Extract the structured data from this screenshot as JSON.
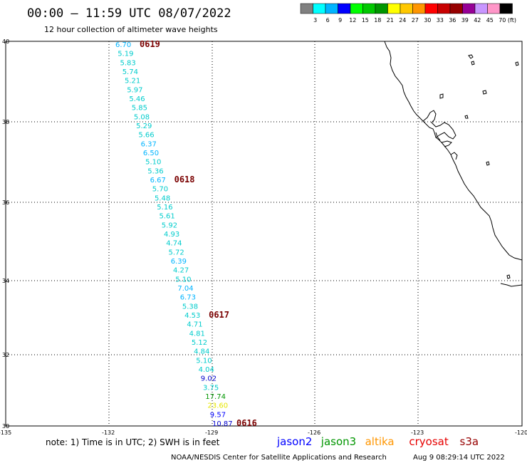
{
  "header": {
    "title": "00:00 – 11:59 UTC 08/07/2022",
    "subtitle": "12 hour collection of altimeter wave heights"
  },
  "color_scale": {
    "colors": [
      "#808080",
      "#00ffff",
      "#00b4ff",
      "#0000ff",
      "#00ff00",
      "#00c800",
      "#009600",
      "#ffff00",
      "#ffc800",
      "#ff9600",
      "#ff0000",
      "#c80000",
      "#960000",
      "#960096",
      "#c896ff",
      "#ff96c8",
      "#000000"
    ],
    "labels": [
      "3",
      "6",
      "9",
      "12",
      "15",
      "18",
      "21",
      "24",
      "27",
      "30",
      "33",
      "36",
      "39",
      "42",
      "45",
      "70",
      "(ft)"
    ]
  },
  "axes": {
    "lat_labels": [
      "40",
      "38",
      "36",
      "34",
      "32",
      "30"
    ],
    "lon_labels": [
      "-135",
      "-132",
      "-129",
      "-126",
      "-123",
      "-120"
    ]
  },
  "pass_labels": [
    "0619",
    "0618",
    "0617",
    "0616"
  ],
  "observations": [
    {
      "v": "6.70",
      "c": "#00b4ff"
    },
    {
      "v": "5.19",
      "c": "#00cccc"
    },
    {
      "v": "5.83",
      "c": "#00cccc"
    },
    {
      "v": "5.74",
      "c": "#00cccc"
    },
    {
      "v": "5.21",
      "c": "#00cccc"
    },
    {
      "v": "5.97",
      "c": "#00cccc"
    },
    {
      "v": "5.46",
      "c": "#00cccc"
    },
    {
      "v": "5.85",
      "c": "#00cccc"
    },
    {
      "v": "5.08",
      "c": "#00cccc"
    },
    {
      "v": "5.29",
      "c": "#00cccc"
    },
    {
      "v": "5.66",
      "c": "#00cccc"
    },
    {
      "v": "6.37",
      "c": "#00b4ff"
    },
    {
      "v": "6.50",
      "c": "#00b4ff"
    },
    {
      "v": "5.10",
      "c": "#00cccc"
    },
    {
      "v": "5.36",
      "c": "#00cccc"
    },
    {
      "v": "6.67",
      "c": "#00b4ff"
    },
    {
      "v": "5.70",
      "c": "#00cccc"
    },
    {
      "v": "5.48",
      "c": "#00cccc"
    },
    {
      "v": "5.16",
      "c": "#00cccc"
    },
    {
      "v": "5.61",
      "c": "#00cccc"
    },
    {
      "v": "5.92",
      "c": "#00cccc"
    },
    {
      "v": "4.93",
      "c": "#00cccc"
    },
    {
      "v": "4.74",
      "c": "#00cccc"
    },
    {
      "v": "5.72",
      "c": "#00cccc"
    },
    {
      "v": "6.39",
      "c": "#00b4ff"
    },
    {
      "v": "4.27",
      "c": "#00cccc"
    },
    {
      "v": "5.10",
      "c": "#00cccc"
    },
    {
      "v": "7.04",
      "c": "#00b4ff"
    },
    {
      "v": "6.73",
      "c": "#00b4ff"
    },
    {
      "v": "5.38",
      "c": "#00cccc"
    },
    {
      "v": "4.53",
      "c": "#00cccc"
    },
    {
      "v": "4.71",
      "c": "#00cccc"
    },
    {
      "v": "4.81",
      "c": "#00cccc"
    },
    {
      "v": "5.12",
      "c": "#00cccc"
    },
    {
      "v": "4.84",
      "c": "#00cccc"
    },
    {
      "v": "5.10",
      "c": "#00cccc"
    },
    {
      "v": "4.04",
      "c": "#00cccc"
    },
    {
      "v": "9.02",
      "c": "#0000cc"
    },
    {
      "v": "3.75",
      "c": "#00cccc"
    },
    {
      "v": "17.74",
      "c": "#009600"
    },
    {
      "v": "23.60",
      "c": "#e6e600"
    },
    {
      "v": "9.57",
      "c": "#0000ff"
    },
    {
      "v": "10.87",
      "c": "#0000cc"
    }
  ],
  "footer": {
    "note": "note: 1) Time is in UTC; 2) SWH is in feet",
    "satellites": [
      {
        "name": "jason2",
        "color": "#0000ff"
      },
      {
        "name": "jason3",
        "color": "#009600"
      },
      {
        "name": "altika",
        "color": "#ff9600"
      },
      {
        "name": "cryosat",
        "color": "#e60000"
      },
      {
        "name": "s3a",
        "color": "#960000"
      }
    ],
    "credit": "NOAA/NESDIS Center for Satellite Applications and Research",
    "timestamp": "Aug  9 08:29:14 UTC 2022"
  }
}
